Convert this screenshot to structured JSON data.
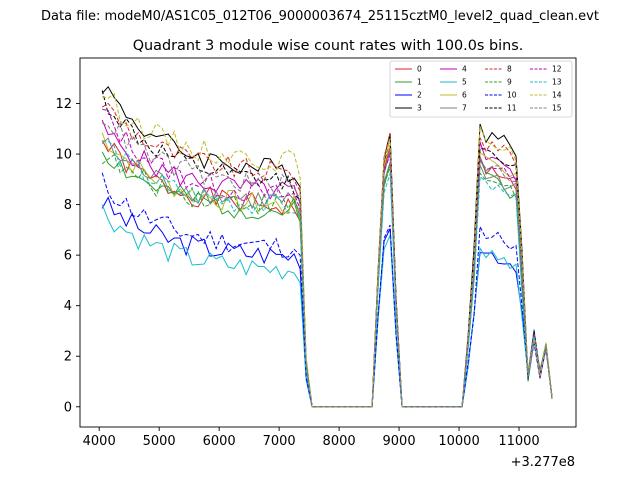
{
  "header": {
    "data_file": "Data file: modeM0/AS1C05_012T06_9000003674_25115cztM0_level2_quad_clean.evt"
  },
  "chart_data": {
    "type": "line",
    "title": "Quadrant 3 module wise count rates with 100.0s bins.",
    "xlabel": "",
    "ylabel": "",
    "x_offset_label": "+3.277e8",
    "xlim": [
      3680,
      11950
    ],
    "ylim": [
      -0.8,
      13.8
    ],
    "x_ticks": [
      4000,
      5000,
      6000,
      7000,
      8000,
      9000,
      10000,
      11000
    ],
    "y_ticks": [
      0,
      2,
      4,
      6,
      8,
      10,
      12
    ],
    "legend_position": "top-right",
    "x": [
      4050,
      4150,
      4250,
      4350,
      4450,
      4550,
      4650,
      4750,
      4850,
      4950,
      5050,
      5150,
      5250,
      5350,
      5450,
      5550,
      5650,
      5750,
      5850,
      5950,
      6050,
      6150,
      6250,
      6350,
      6450,
      6550,
      6650,
      6750,
      6850,
      6950,
      7050,
      7150,
      7250,
      7350,
      7450,
      7550,
      7650,
      7750,
      7850,
      7950,
      8050,
      8150,
      8250,
      8350,
      8450,
      8550,
      8650,
      8750,
      8850,
      8950,
      9050,
      9150,
      9250,
      9350,
      9450,
      9550,
      9650,
      9750,
      9850,
      9950,
      10050,
      10150,
      10250,
      10350,
      10450,
      10550,
      10650,
      10750,
      10850,
      10950,
      11050,
      11150,
      11250,
      11350,
      11450,
      11550
    ],
    "series": [
      {
        "name": "0",
        "color": "#d62728",
        "style": "solid",
        "base": 10.5,
        "end": 7.8,
        "b1": 10.2,
        "b2": 9.9,
        "b3": 9.2,
        "b4": 8.5,
        "b5": 10.0,
        "seed": 1
      },
      {
        "name": "1",
        "color": "#2ca02c",
        "style": "solid",
        "base": 10.2,
        "end": 7.6,
        "b1": 9.8,
        "b2": 9.6,
        "b3": 8.9,
        "b4": 8.2,
        "b5": 9.6,
        "seed": 2
      },
      {
        "name": "2",
        "color": "#0000ff",
        "style": "solid",
        "base": 8.1,
        "end": 5.9,
        "b1": 7.1,
        "b2": 6.3,
        "b3": 6.1,
        "b4": 5.6,
        "b5": 7.5,
        "seed": 3
      },
      {
        "name": "3",
        "color": "#000000",
        "style": "solid",
        "base": 12.8,
        "end": 9.2,
        "b1": 10.8,
        "b2": 11.2,
        "b3": 10.6,
        "b4": 10.1,
        "b5": 12.1,
        "seed": 4
      },
      {
        "name": "4",
        "color": "#bf00bf",
        "style": "solid",
        "base": 11.0,
        "end": 8.4,
        "b1": 10.0,
        "b2": 10.3,
        "b3": 9.5,
        "b4": 9.0,
        "b5": 10.8,
        "seed": 5
      },
      {
        "name": "5",
        "color": "#17becf",
        "style": "solid",
        "base": 7.8,
        "end": 5.3,
        "b1": 6.9,
        "b2": 6.5,
        "b3": 5.9,
        "b4": 5.6,
        "b5": 6.9,
        "seed": 6
      },
      {
        "name": "6",
        "color": "#bcbd22",
        "style": "solid",
        "base": 10.8,
        "end": 7.8,
        "b1": 10.4,
        "b2": 10.1,
        "b3": 9.6,
        "b4": 9.1,
        "b5": 10.9,
        "seed": 7
      },
      {
        "name": "7",
        "color": "#7f7f7f",
        "style": "solid",
        "base": 10.5,
        "end": 8.0,
        "b1": 9.6,
        "b2": 9.4,
        "b3": 9.0,
        "b4": 8.6,
        "b5": 9.8,
        "seed": 8
      },
      {
        "name": "8",
        "color": "#d62728",
        "style": "dashed",
        "base": 12.1,
        "end": 9.1,
        "b1": 10.7,
        "b2": 10.9,
        "b3": 10.3,
        "b4": 9.8,
        "b5": 11.7,
        "seed": 9
      },
      {
        "name": "9",
        "color": "#2ca02c",
        "style": "dashed",
        "base": 10.0,
        "end": 7.9,
        "b1": 9.6,
        "b2": 9.3,
        "b3": 8.8,
        "b4": 8.4,
        "b5": 9.7,
        "seed": 10
      },
      {
        "name": "10",
        "color": "#0000ff",
        "style": "dashed",
        "base": 8.9,
        "end": 6.2,
        "b1": 7.2,
        "b2": 7.0,
        "b3": 6.9,
        "b4": 6.4,
        "b5": 7.7,
        "seed": 11
      },
      {
        "name": "11",
        "color": "#000000",
        "style": "dashed",
        "base": 12.3,
        "end": 8.7,
        "b1": 10.6,
        "b2": 10.5,
        "b3": 9.9,
        "b4": 9.5,
        "b5": 11.4,
        "seed": 12
      },
      {
        "name": "12",
        "color": "#bf00bf",
        "style": "dashed",
        "base": 11.7,
        "end": 8.2,
        "b1": 10.1,
        "b2": 9.9,
        "b3": 9.4,
        "b4": 8.9,
        "b5": 10.6,
        "seed": 13
      },
      {
        "name": "13",
        "color": "#17becf",
        "style": "dashed",
        "base": 10.6,
        "end": 7.8,
        "b1": 9.3,
        "b2": 9.0,
        "b3": 8.6,
        "b4": 8.1,
        "b5": 9.2,
        "seed": 14
      },
      {
        "name": "14",
        "color": "#bcbd22",
        "style": "dashed",
        "base": 12.5,
        "end": 9.6,
        "b1": 10.6,
        "b2": 10.8,
        "b3": 10.5,
        "b4": 9.9,
        "b5": 12.0,
        "seed": 15
      },
      {
        "name": "15",
        "color": "#7f7f7f",
        "style": "dashed",
        "base": 11.6,
        "end": 8.6,
        "b1": 10.1,
        "b2": 10.0,
        "b3": 9.5,
        "b4": 9.0,
        "b5": 10.9,
        "seed": 16
      }
    ]
  }
}
